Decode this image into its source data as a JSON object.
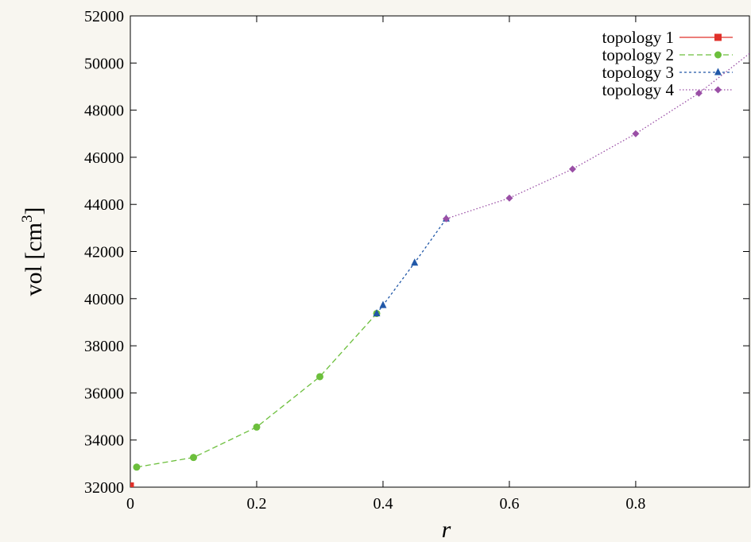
{
  "chart_data": {
    "type": "line",
    "xlabel": "r",
    "ylabel": "vol [cm",
    "ylabel_sup": "3",
    "ylabel_close": "]",
    "xlim": [
      0,
      0.98
    ],
    "ylim": [
      32000,
      52000
    ],
    "xticks": [
      0,
      0.2,
      0.4,
      0.6,
      0.8
    ],
    "xtick_labels": [
      "0",
      "0.2",
      "0.4",
      "0.6",
      "0.8"
    ],
    "yticks": [
      32000,
      34000,
      36000,
      38000,
      40000,
      42000,
      44000,
      46000,
      48000,
      50000,
      52000
    ],
    "ytick_labels": [
      "32000",
      "34000",
      "36000",
      "38000",
      "40000",
      "42000",
      "44000",
      "46000",
      "48000",
      "50000",
      "52000"
    ],
    "grid": false,
    "legend_position": "top-right",
    "series": [
      {
        "name": "topology 1",
        "color": "#e0302a",
        "marker": "square",
        "dash": "solid",
        "x": [
          0.0
        ],
        "y": [
          32050
        ]
      },
      {
        "name": "topology 2",
        "color": "#6cbf3c",
        "marker": "circle",
        "dash": "dashed",
        "x": [
          0.01,
          0.1,
          0.2,
          0.3,
          0.39
        ],
        "y": [
          32850,
          33260,
          34550,
          36690,
          39370
        ]
      },
      {
        "name": "topology 3",
        "color": "#2158a8",
        "marker": "triangle",
        "dash": "dotted-dash",
        "x": [
          0.39,
          0.4,
          0.45,
          0.5
        ],
        "y": [
          39370,
          39720,
          41520,
          43390
        ]
      },
      {
        "name": "topology 4",
        "color": "#9a4fa6",
        "marker": "diamond",
        "dash": "dotted",
        "x": [
          0.5,
          0.6,
          0.7,
          0.8,
          0.9,
          0.98
        ],
        "y": [
          43390,
          44270,
          45500,
          47000,
          48720,
          50400
        ]
      }
    ]
  }
}
